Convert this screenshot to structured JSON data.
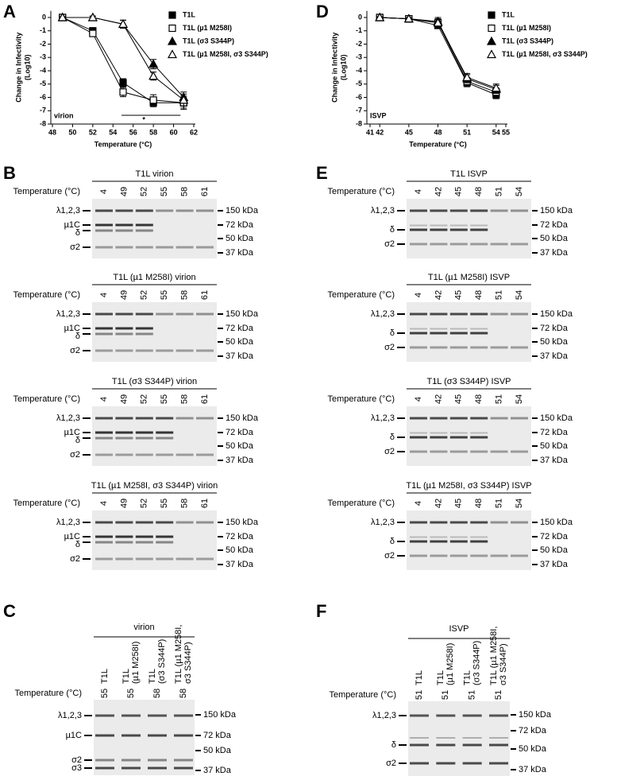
{
  "panel_labels": [
    "A",
    "B",
    "C",
    "D",
    "E",
    "F"
  ],
  "chart_data": [
    {
      "type": "line",
      "x": [
        49,
        52,
        55,
        58,
        61
      ],
      "xlim": [
        48,
        62
      ],
      "xticks": [
        48,
        50,
        52,
        54,
        56,
        58,
        60,
        62
      ],
      "ylim": [
        -8,
        0.5
      ],
      "yticks": [
        0,
        -1,
        -2,
        -3,
        -4,
        -5,
        -6,
        -7,
        -8
      ],
      "xlabel": "Temperature (°C)",
      "ylabel": "Change in Infectivity",
      "ylabel_unit": "(Log10)",
      "annotation": "virion",
      "significance": "*",
      "legend": "right",
      "series": [
        {
          "name": "T1L",
          "marker": "square",
          "filled": true,
          "color": "#000000",
          "values": [
            0,
            -1.0,
            -4.9,
            -6.4,
            -6.4
          ],
          "errors": [
            0.05,
            0.15,
            0.3,
            0.3,
            0.4
          ]
        },
        {
          "name": "T1L (µ1 M258I)",
          "marker": "square",
          "filled": false,
          "color": "#000000",
          "values": [
            0,
            -1.2,
            -5.6,
            -6.2,
            -6.4
          ],
          "errors": [
            0.05,
            0.2,
            0.35,
            0.4,
            0.5
          ]
        },
        {
          "name": "T1L (σ3 S344P)",
          "marker": "triangle",
          "filled": true,
          "color": "#000000",
          "values": [
            0,
            0,
            -0.5,
            -3.5,
            -6.0
          ],
          "errors": [
            0.05,
            0.1,
            0.3,
            0.35,
            0.4
          ]
        },
        {
          "name": "T1L (µ1 M258I, σ3 S344P)",
          "marker": "triangle",
          "filled": false,
          "color": "#000000",
          "values": [
            0,
            0,
            -0.5,
            -4.4,
            -6.2
          ],
          "errors": [
            0.05,
            0.1,
            0.3,
            0.3,
            0.45
          ]
        }
      ]
    },
    {
      "type": "line",
      "x": [
        42,
        45,
        48,
        51,
        54
      ],
      "xlim": [
        41,
        55
      ],
      "xticks": [
        41,
        42,
        45,
        48,
        51,
        54,
        55
      ],
      "ylim": [
        -8,
        0.5
      ],
      "yticks": [
        0,
        -1,
        -2,
        -3,
        -4,
        -5,
        -6,
        -7,
        -8
      ],
      "xlabel": "Temperature (°C)",
      "ylabel": "Change in Infectivity",
      "ylabel_unit": "(Log10)",
      "annotation": "ISVP",
      "legend": "right",
      "series": [
        {
          "name": "T1L",
          "marker": "square",
          "filled": true,
          "color": "#000000",
          "values": [
            0,
            -0.1,
            -0.6,
            -4.9,
            -5.8
          ],
          "errors": [
            0.05,
            0.1,
            0.2,
            0.3,
            0.3
          ]
        },
        {
          "name": "T1L (µ1 M258I)",
          "marker": "square",
          "filled": false,
          "color": "#000000",
          "values": [
            0,
            -0.1,
            -0.4,
            -4.8,
            -5.6
          ],
          "errors": [
            0.05,
            0.1,
            0.2,
            0.3,
            0.3
          ]
        },
        {
          "name": "T1L (σ3 S344P)",
          "marker": "triangle",
          "filled": true,
          "color": "#000000",
          "values": [
            0,
            -0.1,
            -0.3,
            -4.6,
            -5.4
          ],
          "errors": [
            0.05,
            0.1,
            0.3,
            0.3,
            0.3
          ]
        },
        {
          "name": "T1L (µ1 M258I, σ3 S344P)",
          "marker": "triangle",
          "filled": false,
          "color": "#000000",
          "values": [
            0,
            -0.1,
            -0.4,
            -4.5,
            -5.3
          ],
          "errors": [
            0.05,
            0.1,
            0.3,
            0.3,
            0.3
          ]
        }
      ]
    }
  ],
  "gels": [
    {
      "title": "T1L virion",
      "temperature_label": "Temperature (°C)",
      "lanes": [
        4,
        49,
        52,
        55,
        58,
        61
      ],
      "bands": [
        "λ1,2,3",
        "µ1C",
        "δ",
        "σ2"
      ],
      "markers": [
        "150 kDa",
        "72 kDa",
        "50 kDa",
        "37 kDa"
      ]
    },
    {
      "title": "T1L (µ1 M258I) virion",
      "temperature_label": "Temperature (°C)",
      "lanes": [
        4,
        49,
        52,
        55,
        58,
        61
      ],
      "bands": [
        "λ1,2,3",
        "µ1C",
        "δ",
        "σ2"
      ],
      "markers": [
        "150 kDa",
        "72 kDa",
        "50 kDa",
        "37 kDa"
      ]
    },
    {
      "title": "T1L (σ3 S344P) virion",
      "temperature_label": "Temperature (°C)",
      "lanes": [
        4,
        49,
        52,
        55,
        58,
        61
      ],
      "bands": [
        "λ1,2,3",
        "µ1C",
        "δ",
        "σ2"
      ],
      "markers": [
        "150 kDa",
        "72 kDa",
        "50 kDa",
        "37 kDa"
      ]
    },
    {
      "title": "T1L (µ1 M258I, σ3 S344P) virion",
      "temperature_label": "Temperature (°C)",
      "lanes": [
        4,
        49,
        52,
        55,
        58,
        61
      ],
      "bands": [
        "λ1,2,3",
        "µ1C",
        "δ",
        "σ2"
      ],
      "markers": [
        "150 kDa",
        "72 kDa",
        "50 kDa",
        "37 kDa"
      ]
    },
    {
      "title": "T1L ISVP",
      "temperature_label": "Temperature (°C)",
      "lanes": [
        4,
        42,
        45,
        48,
        51,
        54
      ],
      "bands": [
        "λ1,2,3",
        "δ",
        "σ2"
      ],
      "markers": [
        "150 kDa",
        "72 kDa",
        "50 kDa",
        "37 kDa"
      ]
    },
    {
      "title": "T1L (µ1 M258I) ISVP",
      "temperature_label": "Temperature (°C)",
      "lanes": [
        4,
        42,
        45,
        48,
        51,
        54
      ],
      "bands": [
        "λ1,2,3",
        "δ",
        "σ2"
      ],
      "markers": [
        "150 kDa",
        "72 kDa",
        "50 kDa",
        "37 kDa"
      ]
    },
    {
      "title": "T1L (σ3 S344P) ISVP",
      "temperature_label": "Temperature (°C)",
      "lanes": [
        4,
        42,
        45,
        48,
        51,
        54
      ],
      "bands": [
        "λ1,2,3",
        "δ",
        "σ2"
      ],
      "markers": [
        "150 kDa",
        "72 kDa",
        "50 kDa",
        "37 kDa"
      ]
    },
    {
      "title": "T1L (µ1 M258I, σ3 S344P) ISVP",
      "temperature_label": "Temperature (°C)",
      "lanes": [
        4,
        42,
        45,
        48,
        51,
        54
      ],
      "bands": [
        "λ1,2,3",
        "δ",
        "σ2"
      ],
      "markers": [
        "150 kDa",
        "72 kDa",
        "50 kDa",
        "37 kDa"
      ]
    }
  ],
  "summary_gels": [
    {
      "header": "virion",
      "lanes": [
        [
          "T1L"
        ],
        [
          "T1L",
          "(µ1 M258I)"
        ],
        [
          "T1L",
          "(σ3 S344P)"
        ],
        [
          "T1L (µ1 M258I,",
          "σ3 S344P)"
        ]
      ],
      "temperature_label": "Temperature (°C)",
      "temperatures": [
        55,
        55,
        58,
        58
      ],
      "bands": [
        "λ1,2,3",
        "µ1C",
        "σ2",
        "σ3"
      ],
      "markers": [
        "150 kDa",
        "72 kDa",
        "50 kDa",
        "37 kDa"
      ]
    },
    {
      "header": "ISVP",
      "lanes": [
        [
          "T1L"
        ],
        [
          "T1L",
          "(µ1 M258I)"
        ],
        [
          "T1L",
          "(σ3 S344P)"
        ],
        [
          "T1L (µ1 M258I,",
          "σ3 S344P)"
        ]
      ],
      "temperature_label": "Temperature (°C)",
      "temperatures": [
        51,
        51,
        51,
        51
      ],
      "bands": [
        "λ1,2,3",
        "δ",
        "σ2"
      ],
      "markers": [
        "150 kDa",
        "72 kDa",
        "50 kDa",
        "37 kDa"
      ]
    }
  ]
}
